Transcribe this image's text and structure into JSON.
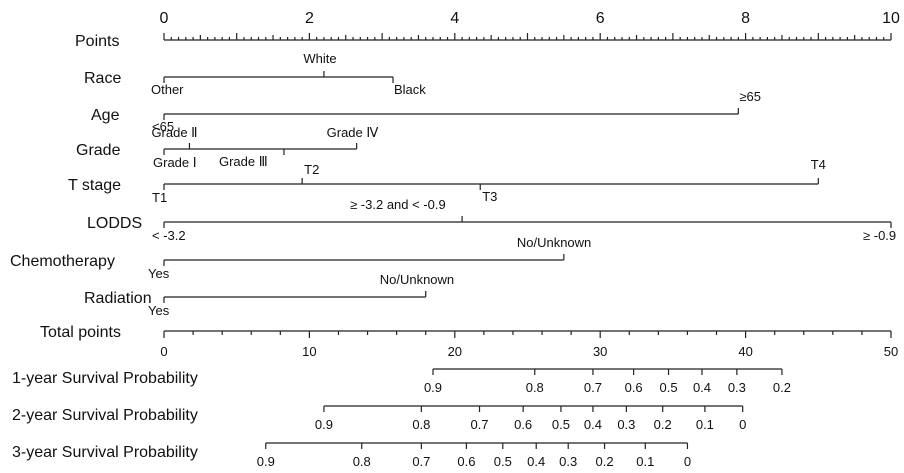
{
  "chart_data": {
    "type": "nomogram",
    "points_axis": {
      "label": "Points",
      "range": [
        0,
        10
      ],
      "major_ticks": [
        "0",
        "2",
        "4",
        "6",
        "8",
        "10"
      ]
    },
    "variables": [
      {
        "label": "Race",
        "levels": [
          {
            "name": "Other",
            "points": 0
          },
          {
            "name": "White",
            "points": 2.2
          },
          {
            "name": "Black",
            "points": 3.15
          }
        ]
      },
      {
        "label": "Age",
        "levels": [
          {
            "name": "<65",
            "points": 0
          },
          {
            "name": "≥65",
            "points": 7.9
          }
        ]
      },
      {
        "label": "Grade",
        "levels": [
          {
            "name": "Grade Ⅰ",
            "points": 0
          },
          {
            "name": "Grade Ⅱ",
            "points": 0.35
          },
          {
            "name": "Grade Ⅲ",
            "points": 1.65
          },
          {
            "name": "Grade Ⅳ",
            "points": 2.65
          }
        ]
      },
      {
        "label": "T stage",
        "levels": [
          {
            "name": "T1",
            "points": 0
          },
          {
            "name": "T2",
            "points": 1.9
          },
          {
            "name": "T3",
            "points": 4.35
          },
          {
            "name": "T4",
            "points": 9.0
          }
        ]
      },
      {
        "label": "LODDS",
        "levels": [
          {
            "name": "< -3.2",
            "points": 0
          },
          {
            "name": "≥ -3.2 and < -0.9",
            "points": 4.1
          },
          {
            "name": "≥ -0.9",
            "points": 10.0
          }
        ]
      },
      {
        "label": "Chemotherapy",
        "levels": [
          {
            "name": "Yes",
            "points": 0
          },
          {
            "name": "No/Unknown",
            "points": 5.5
          }
        ]
      },
      {
        "label": "Radiation",
        "levels": [
          {
            "name": "Yes",
            "points": 0
          },
          {
            "name": "No/Unknown",
            "points": 3.6
          }
        ]
      }
    ],
    "total_points_axis": {
      "label": "Total points",
      "range": [
        0,
        50
      ],
      "major_ticks": [
        "0",
        "10",
        "20",
        "30",
        "40",
        "50"
      ]
    },
    "survival_axes": [
      {
        "label": "1-year Survival Probability",
        "total_points_range": [
          18.5,
          42.5
        ],
        "ticks": [
          {
            "label": "0.9",
            "total_points": 18.5
          },
          {
            "label": "0.8",
            "total_points": 25.5
          },
          {
            "label": "0.7",
            "total_points": 29.5
          },
          {
            "label": "0.6",
            "total_points": 32.3
          },
          {
            "label": "0.5",
            "total_points": 34.7
          },
          {
            "label": "0.4",
            "total_points": 37.0
          },
          {
            "label": "0.3",
            "total_points": 39.4
          },
          {
            "label": "0.2",
            "total_points": 42.5
          }
        ]
      },
      {
        "label": "2-year Survival Probability",
        "total_points_range": [
          11.0,
          39.8
        ],
        "ticks": [
          {
            "label": "0.9",
            "total_points": 11.0
          },
          {
            "label": "0.8",
            "total_points": 17.7
          },
          {
            "label": "0.7",
            "total_points": 21.7
          },
          {
            "label": "0.6",
            "total_points": 24.7
          },
          {
            "label": "0.5",
            "total_points": 27.3
          },
          {
            "label": "0.4",
            "total_points": 29.5
          },
          {
            "label": "0.3",
            "total_points": 31.8
          },
          {
            "label": "0.2",
            "total_points": 34.3
          },
          {
            "label": "0.1",
            "total_points": 37.2
          },
          {
            "label": "0",
            "total_points": 39.8
          }
        ]
      },
      {
        "label": "3-year Survival Probability",
        "total_points_range": [
          7.0,
          36.0
        ],
        "ticks": [
          {
            "label": "0.9",
            "total_points": 7.0
          },
          {
            "label": "0.8",
            "total_points": 13.6
          },
          {
            "label": "0.7",
            "total_points": 17.7
          },
          {
            "label": "0.6",
            "total_points": 20.8
          },
          {
            "label": "0.5",
            "total_points": 23.3
          },
          {
            "label": "0.4",
            "total_points": 25.6
          },
          {
            "label": "0.3",
            "total_points": 27.8
          },
          {
            "label": "0.2",
            "total_points": 30.3
          },
          {
            "label": "0.1",
            "total_points": 33.1
          },
          {
            "label": "0",
            "total_points": 36.0
          }
        ]
      }
    ]
  }
}
